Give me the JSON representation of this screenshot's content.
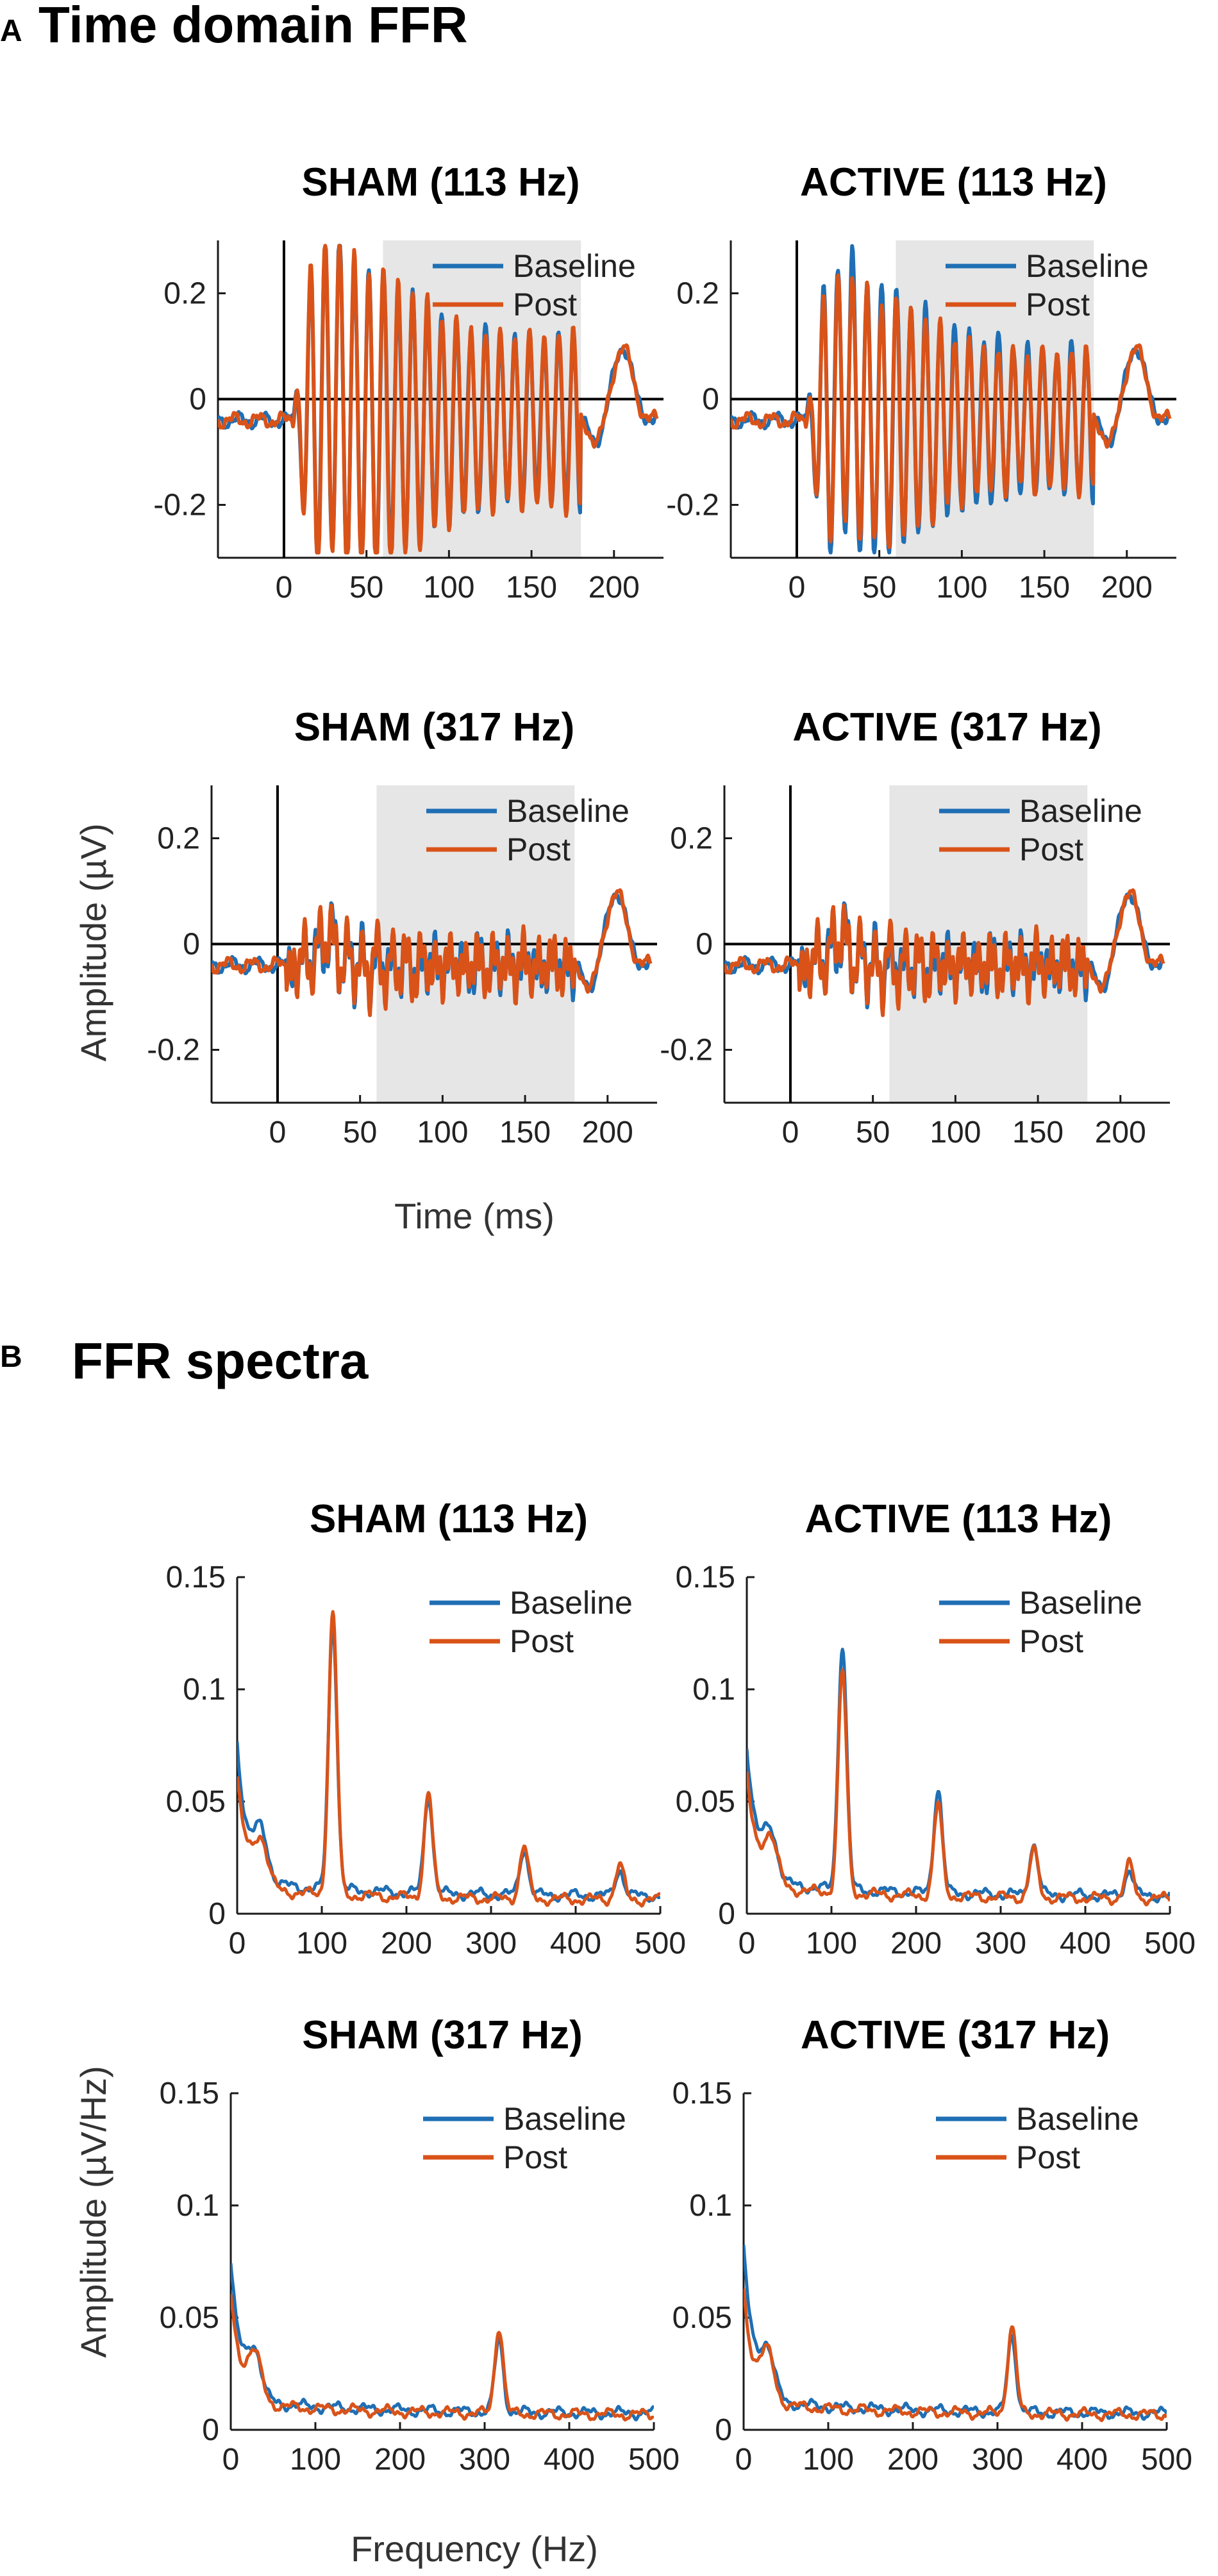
{
  "colors": {
    "baseline": "#1f6fb4",
    "post": "#d95319",
    "window": "#e6e6e6",
    "axis": "#1a1a1a"
  },
  "panels": {
    "a": {
      "letter": "A",
      "title": "Time domain FFR",
      "ylabel": "Amplitude (µV)",
      "xlabel": "Time (ms)"
    },
    "b": {
      "letter": "B",
      "title": "FFR spectra",
      "ylabel": "Amplitude (µV/Hz)",
      "xlabel": "Frequency (Hz)"
    }
  },
  "chart_data": [
    {
      "id": "a1",
      "type": "line",
      "title": "SHAM (113 Hz)",
      "xlim": [
        -40,
        230
      ],
      "ylim": [
        -0.3,
        0.3
      ],
      "xticks": [
        0,
        50,
        100,
        150,
        200
      ],
      "yticks": [
        -0.2,
        0,
        0.2
      ],
      "xtick_labels": [
        "0",
        "50",
        "100",
        "150",
        "200"
      ],
      "ytick_labels": [
        "-0.2",
        "0",
        "0.2"
      ],
      "shaded_window": [
        60,
        180
      ],
      "zero_lines": true,
      "legend_loc": "top-right",
      "signal": {
        "f0": 113,
        "onset": 5,
        "offset": 180,
        "peak_amp": 0.3,
        "post_scale": 1.04
      },
      "series": [
        {
          "name": "Baseline"
        },
        {
          "name": "Post"
        }
      ]
    },
    {
      "id": "a2",
      "type": "line",
      "title": "ACTIVE (113 Hz)",
      "xlim": [
        -40,
        230
      ],
      "ylim": [
        -0.3,
        0.3
      ],
      "xticks": [
        0,
        50,
        100,
        150,
        200
      ],
      "yticks": [
        -0.2,
        0,
        0.2
      ],
      "xtick_labels": [
        "0",
        "50",
        "100",
        "150",
        "200"
      ],
      "ytick_labels": [
        "-0.2",
        "0",
        "0.2"
      ],
      "shaded_window": [
        60,
        180
      ],
      "zero_lines": true,
      "legend_loc": "top-right",
      "signal": {
        "f0": 113,
        "onset": 5,
        "offset": 180,
        "peak_amp": 0.27,
        "post_scale": 0.92
      },
      "series": [
        {
          "name": "Baseline"
        },
        {
          "name": "Post"
        }
      ]
    },
    {
      "id": "a3",
      "type": "line",
      "title": "SHAM (317 Hz)",
      "xlim": [
        -40,
        230
      ],
      "ylim": [
        -0.3,
        0.3
      ],
      "xticks": [
        0,
        50,
        100,
        150,
        200
      ],
      "yticks": [
        -0.2,
        0,
        0.2
      ],
      "xtick_labels": [
        "0",
        "50",
        "100",
        "150",
        "200"
      ],
      "ytick_labels": [
        "-0.2",
        "0",
        "0.2"
      ],
      "shaded_window": [
        60,
        180
      ],
      "zero_lines": true,
      "legend_loc": "top-right",
      "signal": {
        "f0": 317,
        "onset": 5,
        "offset": 180,
        "peak_amp": 0.05,
        "post_scale": 1.05
      },
      "series": [
        {
          "name": "Baseline"
        },
        {
          "name": "Post"
        }
      ]
    },
    {
      "id": "a4",
      "type": "line",
      "title": "ACTIVE (317 Hz)",
      "xlim": [
        -40,
        230
      ],
      "ylim": [
        -0.3,
        0.3
      ],
      "xticks": [
        0,
        50,
        100,
        150,
        200
      ],
      "yticks": [
        -0.2,
        0,
        0.2
      ],
      "xtick_labels": [
        "0",
        "50",
        "100",
        "150",
        "200"
      ],
      "ytick_labels": [
        "-0.2",
        "0",
        "0.2"
      ],
      "shaded_window": [
        60,
        180
      ],
      "zero_lines": true,
      "legend_loc": "top-right",
      "signal": {
        "f0": 317,
        "onset": 5,
        "offset": 180,
        "peak_amp": 0.05,
        "post_scale": 1.05
      },
      "series": [
        {
          "name": "Baseline"
        },
        {
          "name": "Post"
        }
      ]
    },
    {
      "id": "b1",
      "type": "line",
      "title": "SHAM (113 Hz)",
      "xlim": [
        0,
        500
      ],
      "ylim": [
        0,
        0.15
      ],
      "xticks": [
        0,
        100,
        200,
        300,
        400,
        500
      ],
      "yticks": [
        0,
        0.05,
        0.1,
        0.15
      ],
      "xtick_labels": [
        "0",
        "100",
        "200",
        "300",
        "400",
        "500"
      ],
      "ytick_labels": [
        "0",
        "0.05",
        "0.1",
        "0.15"
      ],
      "legend_loc": "top-right",
      "series": [
        {
          "name": "Baseline",
          "dc": 0.063,
          "floor": 0.014,
          "peaks": [
            [
              113,
              0.128
            ],
            [
              226,
              0.052
            ],
            [
              339,
              0.029
            ],
            [
              452,
              0.02
            ]
          ]
        },
        {
          "name": "Post",
          "dc": 0.05,
          "floor": 0.011,
          "peaks": [
            [
              113,
              0.132
            ],
            [
              226,
              0.053
            ],
            [
              339,
              0.03
            ],
            [
              452,
              0.022
            ]
          ]
        }
      ]
    },
    {
      "id": "b2",
      "type": "line",
      "title": "ACTIVE (113 Hz)",
      "xlim": [
        0,
        500
      ],
      "ylim": [
        0,
        0.15
      ],
      "xticks": [
        0,
        100,
        200,
        300,
        400,
        500
      ],
      "yticks": [
        0,
        0.05,
        0.1,
        0.15
      ],
      "xtick_labels": [
        "0",
        "100",
        "200",
        "300",
        "400",
        "500"
      ],
      "ytick_labels": [
        "0",
        "0.05",
        "0.1",
        "0.15"
      ],
      "legend_loc": "top-right",
      "series": [
        {
          "name": "Baseline",
          "dc": 0.062,
          "floor": 0.014,
          "peaks": [
            [
              113,
              0.118
            ],
            [
              226,
              0.055
            ],
            [
              339,
              0.031
            ],
            [
              452,
              0.02
            ]
          ]
        },
        {
          "name": "Post",
          "dc": 0.05,
          "floor": 0.012,
          "peaks": [
            [
              113,
              0.106
            ],
            [
              226,
              0.048
            ],
            [
              339,
              0.028
            ],
            [
              452,
              0.022
            ]
          ]
        }
      ]
    },
    {
      "id": "b3",
      "type": "line",
      "title": "SHAM (317 Hz)",
      "xlim": [
        0,
        500
      ],
      "ylim": [
        0,
        0.15
      ],
      "xticks": [
        0,
        100,
        200,
        300,
        400,
        500
      ],
      "yticks": [
        0,
        0.05,
        0.1,
        0.15
      ],
      "xtick_labels": [
        "0",
        "100",
        "200",
        "300",
        "400",
        "500"
      ],
      "ytick_labels": [
        "0",
        "0.05",
        "0.1",
        "0.15"
      ],
      "legend_loc": "top-right",
      "series": [
        {
          "name": "Baseline",
          "dc": 0.062,
          "floor": 0.013,
          "peaks": [
            [
              317,
              0.04
            ]
          ]
        },
        {
          "name": "Post",
          "dc": 0.048,
          "floor": 0.012,
          "peaks": [
            [
              317,
              0.046
            ]
          ]
        }
      ]
    },
    {
      "id": "b4",
      "type": "line",
      "title": "ACTIVE (317 Hz)",
      "xlim": [
        0,
        500
      ],
      "ylim": [
        0,
        0.15
      ],
      "xticks": [
        0,
        100,
        200,
        300,
        400,
        500
      ],
      "yticks": [
        0,
        0.05,
        0.1,
        0.15
      ],
      "xtick_labels": [
        "0",
        "100",
        "200",
        "300",
        "400",
        "500"
      ],
      "ytick_labels": [
        "0",
        "0.05",
        "0.1",
        "0.15"
      ],
      "legend_loc": "top-right",
      "series": [
        {
          "name": "Baseline",
          "dc": 0.068,
          "floor": 0.013,
          "peaks": [
            [
              317,
              0.042
            ]
          ]
        },
        {
          "name": "Post",
          "dc": 0.05,
          "floor": 0.012,
          "peaks": [
            [
              317,
              0.046
            ]
          ]
        }
      ]
    }
  ]
}
